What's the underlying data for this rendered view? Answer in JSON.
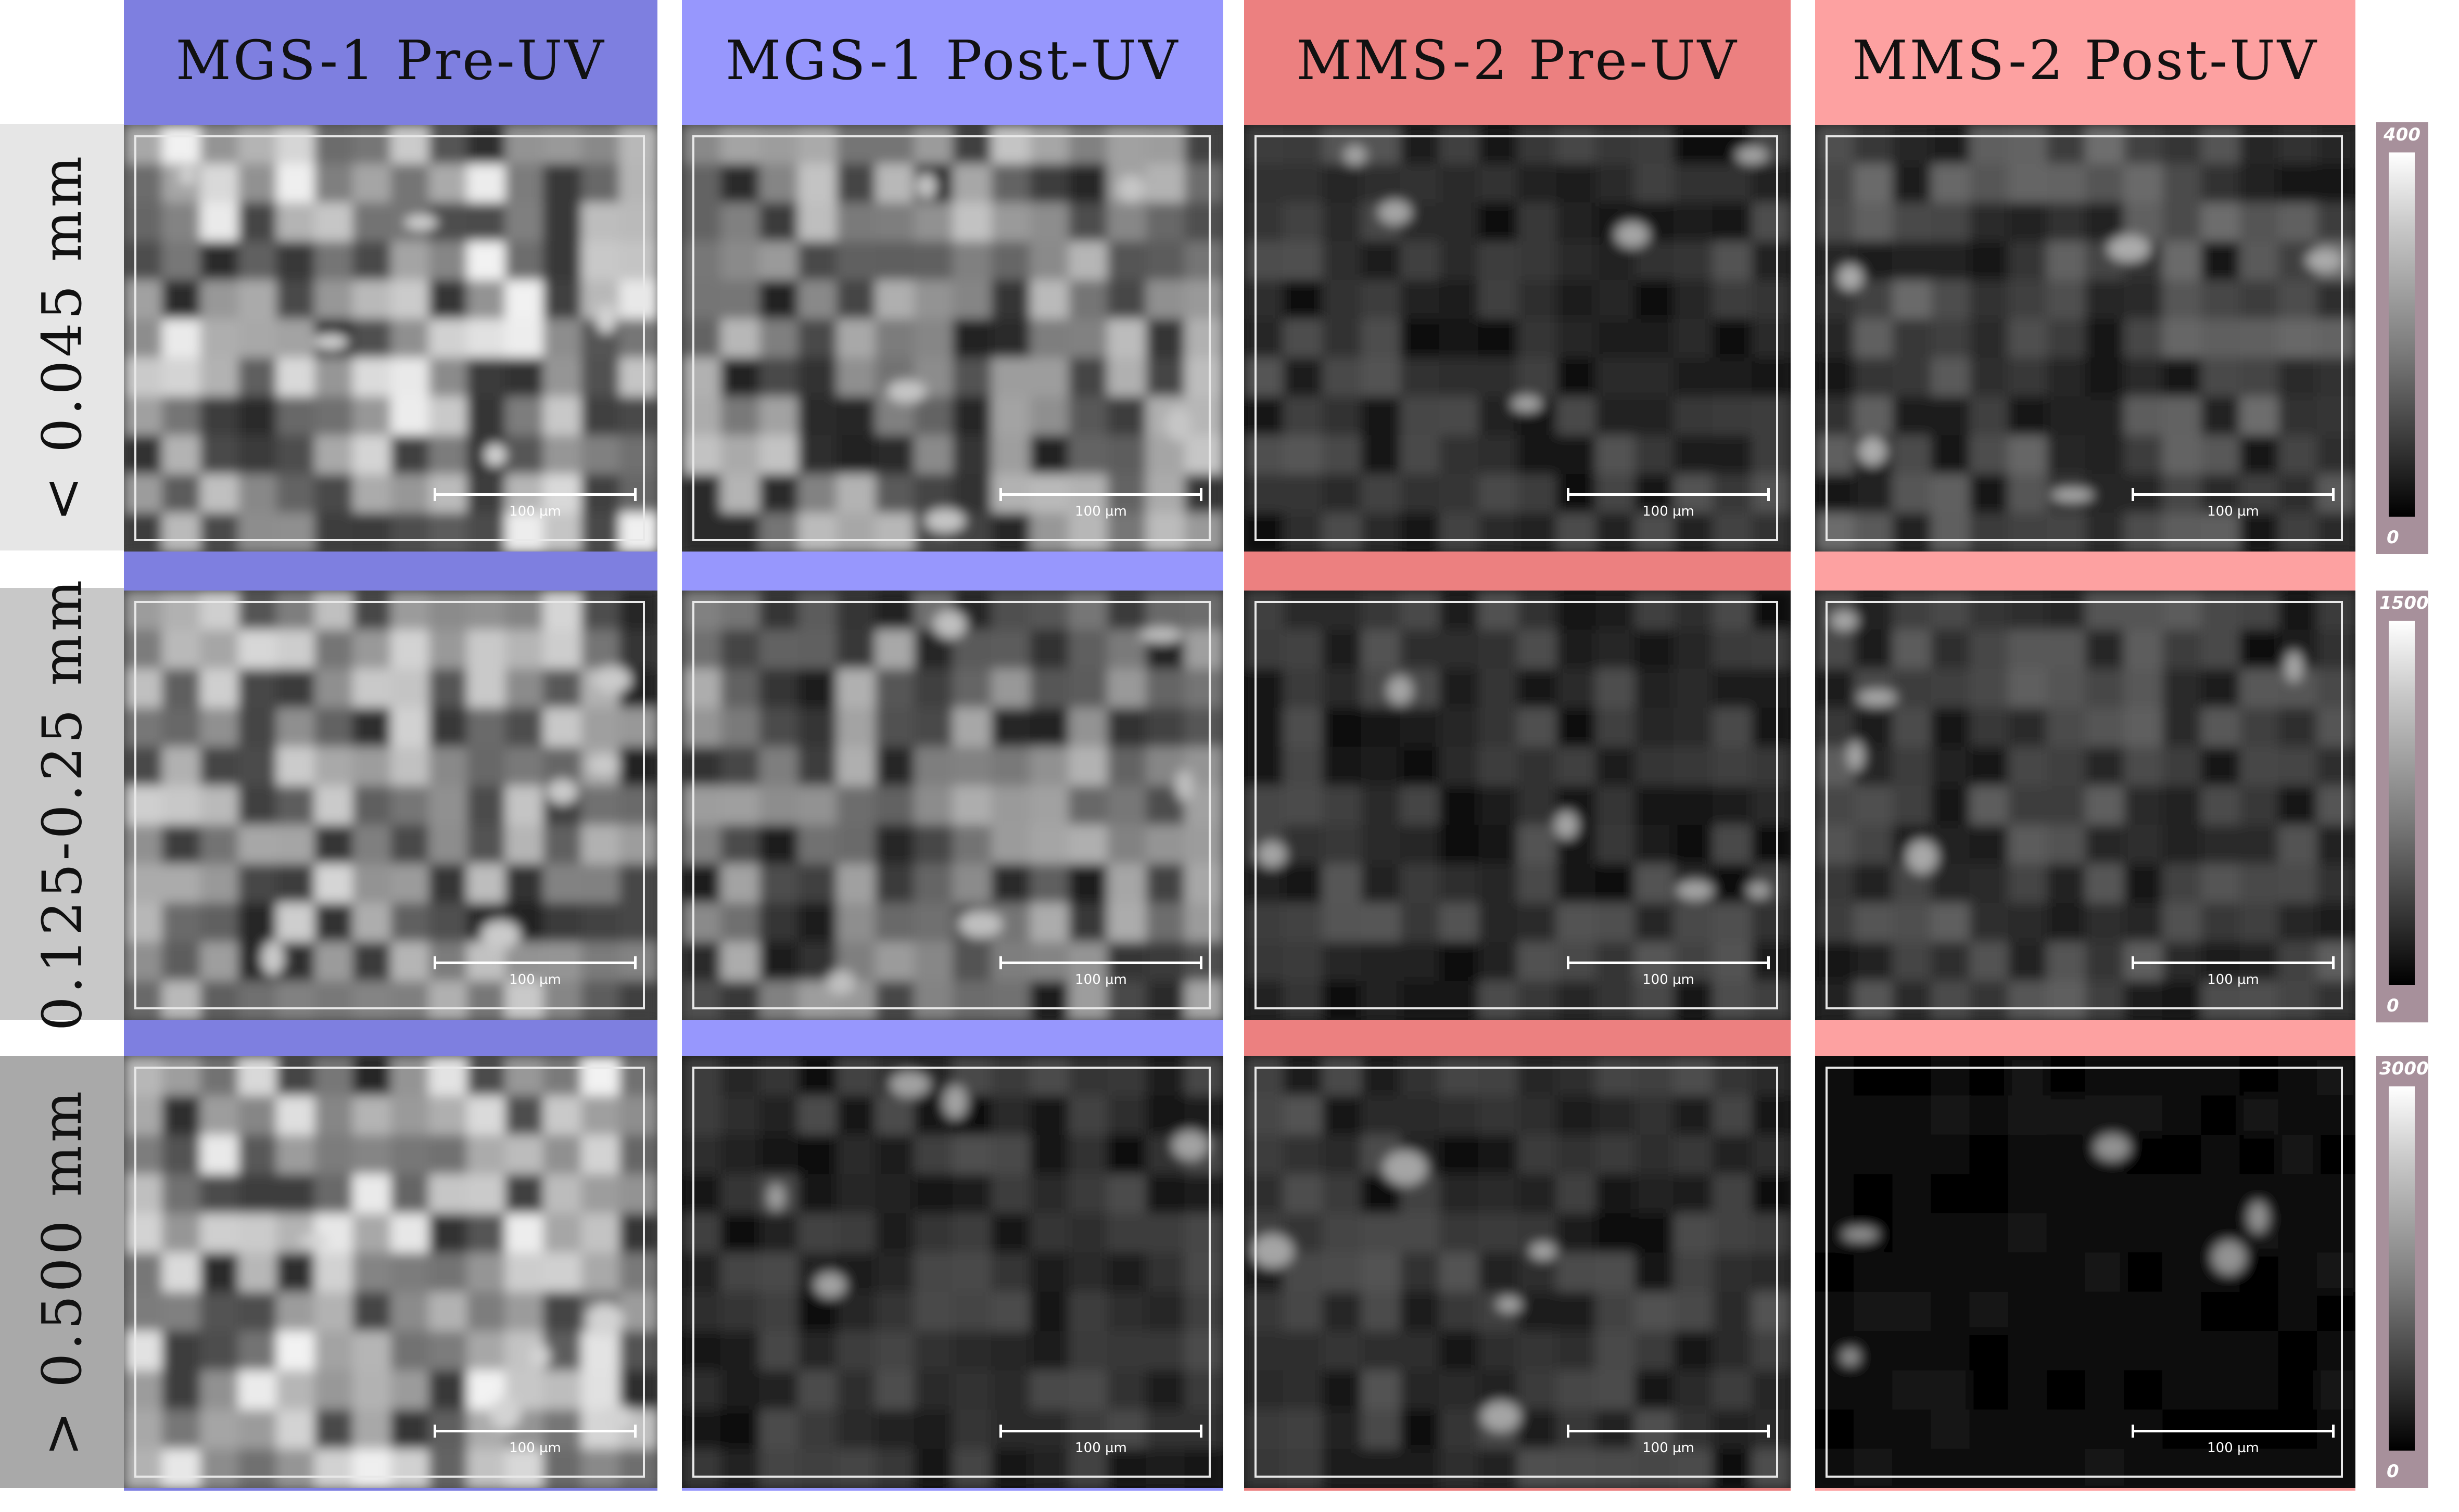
{
  "colors": {
    "mgs_pre": "#7e7fe0",
    "mgs_post": "#9797fd",
    "mms_pre": "#ec8080",
    "mms_post": "#fda1a1",
    "row_bg_1": "#e6e6e6",
    "row_bg_2": "#c8c8c8",
    "row_bg_3": "#a9a9a9"
  },
  "columns": [
    {
      "label": "MGS-1 Pre-UV",
      "color": "#7e7fe0"
    },
    {
      "label": "MGS-1 Post-UV",
      "color": "#9797fd"
    },
    {
      "label": "MMS-2 Pre-UV",
      "color": "#ec8080"
    },
    {
      "label": "MMS-2 Post-UV",
      "color": "#fda1a1"
    }
  ],
  "rows": [
    {
      "label": "< 0.045 mm",
      "colorbar": {
        "max": "400",
        "min": "0"
      }
    },
    {
      "label": "0.125-0.25 mm",
      "colorbar": {
        "max": "1500",
        "min": "0"
      }
    },
    {
      "label": "> 0.500 mm",
      "colorbar": {
        "max": "3000",
        "min": "0"
      }
    }
  ],
  "scale_bar_label": "100 µm",
  "panel_brightness": [
    [
      0.62,
      0.5,
      0.22,
      0.28
    ],
    [
      0.55,
      0.45,
      0.22,
      0.24
    ],
    [
      0.62,
      0.2,
      0.22,
      0.05
    ]
  ]
}
